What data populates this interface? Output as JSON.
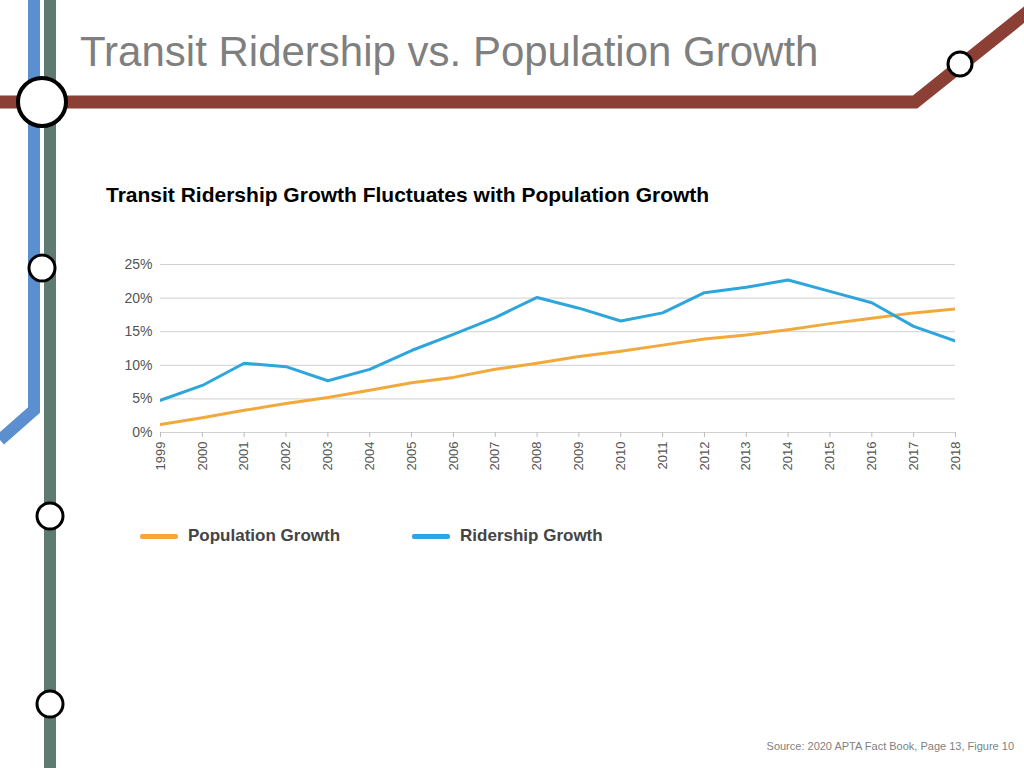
{
  "chart_data": {
    "type": "line",
    "slide_title": "Transit Ridership vs. Population Growth",
    "title": "Transit Ridership Growth Fluctuates with Population Growth",
    "source": "Source: 2020 APTA Fact Book, Page 13, Figure 10",
    "x": [
      1999,
      2000,
      2001,
      2002,
      2003,
      2004,
      2005,
      2006,
      2007,
      2008,
      2009,
      2010,
      2011,
      2012,
      2013,
      2014,
      2015,
      2016,
      2017,
      2018
    ],
    "series": [
      {
        "name": "Population Growth",
        "color": "#f2a93b",
        "values": [
          1.2,
          2.2,
          3.3,
          4.3,
          5.2,
          6.3,
          7.4,
          8.2,
          9.4,
          10.3,
          11.3,
          12.1,
          13.0,
          13.9,
          14.5,
          15.3,
          16.2,
          17.0,
          17.8,
          18.4
        ]
      },
      {
        "name": "Ridership Growth",
        "color": "#2ea6dc",
        "values": [
          4.8,
          7.0,
          10.3,
          9.8,
          7.7,
          9.4,
          12.2,
          14.6,
          17.1,
          20.1,
          18.5,
          16.6,
          17.8,
          20.8,
          21.6,
          22.7,
          21.0,
          19.3,
          15.8,
          13.6
        ]
      }
    ],
    "xlim": [
      1999,
      2018
    ],
    "xticks": [
      1999,
      2000,
      2001,
      2002,
      2003,
      2004,
      2005,
      2006,
      2007,
      2008,
      2009,
      2010,
      2011,
      2012,
      2013,
      2014,
      2015,
      2016,
      2017,
      2018
    ],
    "ylim": [
      0,
      25
    ],
    "yticks": [
      {
        "value": 0,
        "label": "0%"
      },
      {
        "value": 5,
        "label": "5%"
      },
      {
        "value": 10,
        "label": "10%"
      },
      {
        "value": 15,
        "label": "15%"
      },
      {
        "value": 20,
        "label": "20%"
      },
      {
        "value": 25,
        "label": "25%"
      }
    ],
    "grid": true,
    "legend": "bottom"
  }
}
